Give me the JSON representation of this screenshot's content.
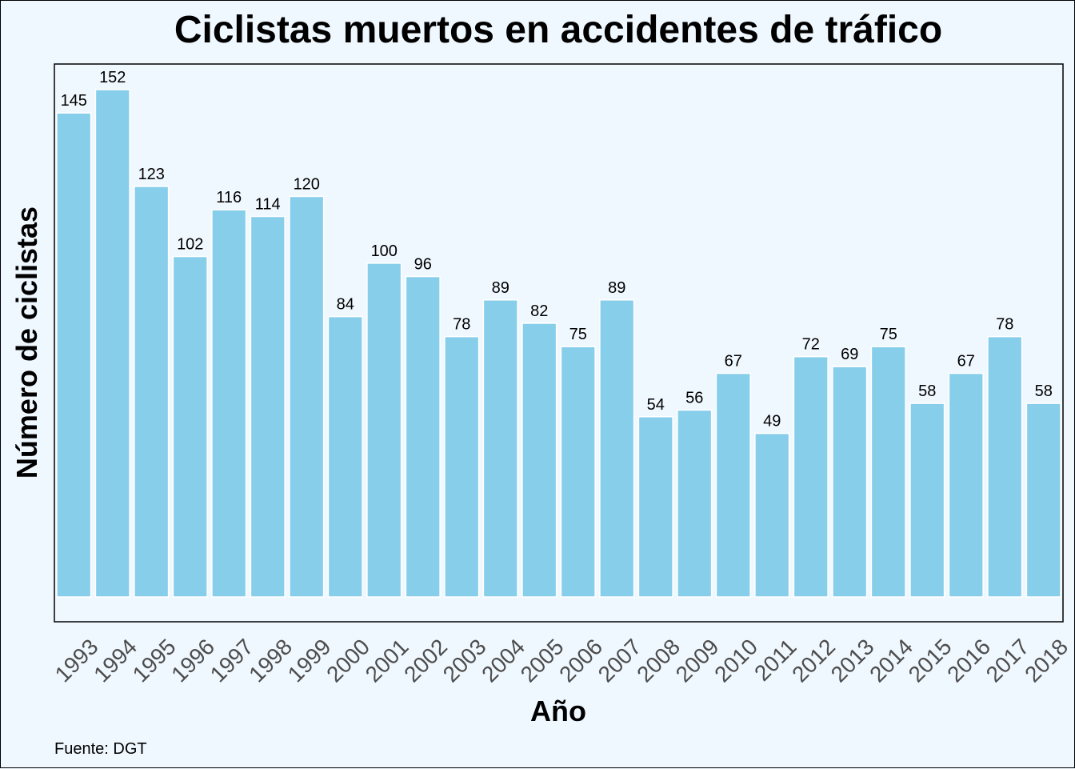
{
  "chart_data": {
    "type": "bar",
    "title": "Ciclistas muertos en accidentes de tráfico",
    "xlabel": "Año",
    "ylabel": "Número de ciclistas",
    "caption": "Fuente: DGT",
    "categories": [
      "1993",
      "1994",
      "1995",
      "1996",
      "1997",
      "1998",
      "1999",
      "2000",
      "2001",
      "2002",
      "2003",
      "2004",
      "2005",
      "2006",
      "2007",
      "2008",
      "2009",
      "2010",
      "2011",
      "2012",
      "2013",
      "2014",
      "2015",
      "2016",
      "2017",
      "2018"
    ],
    "values": [
      145,
      152,
      123,
      102,
      116,
      114,
      120,
      84,
      100,
      96,
      78,
      89,
      82,
      75,
      89,
      54,
      56,
      67,
      49,
      72,
      69,
      75,
      58,
      67,
      78,
      58
    ],
    "ylim": [
      0,
      152
    ],
    "y_axis_visible": false,
    "grid": false,
    "legend": "none",
    "data_labels": true,
    "bar_color": "#87CEEB",
    "bar_outline": "#FFFFFF",
    "background": "#F0F8FF"
  }
}
